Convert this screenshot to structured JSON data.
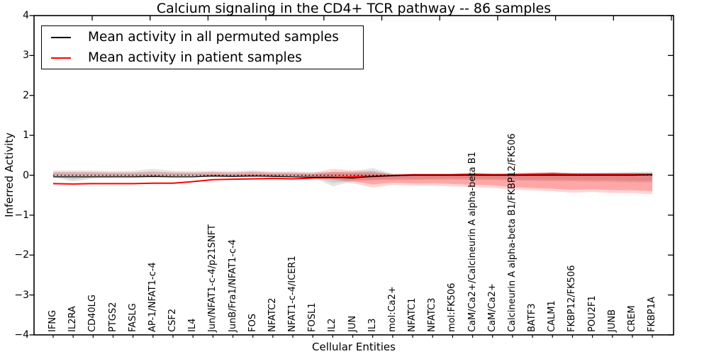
{
  "title": "Calcium signaling in the CD4+ TCR pathway -- 86 samples",
  "axes": {
    "ylabel": "Inferred Activity",
    "xlabel": "Cellular Entities"
  },
  "legend": [
    {
      "label": "Mean activity in all permuted samples",
      "color": "#000000"
    },
    {
      "label": "Mean activity in patient samples",
      "color": "#ff0000"
    }
  ],
  "chart_data": {
    "type": "line",
    "title": "Calcium signaling in the CD4+ TCR pathway -- 86 samples",
    "xlabel": "Cellular Entities",
    "ylabel": "Inferred Activity",
    "ylim": [
      -4,
      4
    ],
    "yticks": [
      4,
      3,
      2,
      1,
      0,
      -1,
      -2,
      -3,
      -4
    ],
    "grid": false,
    "legend_position": "upper left",
    "zero_line": true,
    "categories": [
      "IFNG",
      "IL2RA",
      "CD40LG",
      "PTGS2",
      "FASLG",
      "AP-1/NFAT1-c-4",
      "CSF2",
      "IL4",
      "Jun/NFAT1-c-4/p21SNFT",
      "JunB/Fra1/NFAT1-c-4",
      "FOS",
      "NFATC2",
      "NFAT1-c-4/ICER1",
      "FOSL1",
      "IL2",
      "JUN",
      "IL3",
      "mol:Ca2+",
      "NFATC1",
      "NFATC3",
      "mol:FK506",
      "CaM/Ca2+/Calcineurin A alpha-beta B1",
      "CaM/Ca2+",
      "Calcineurin A alpha-beta B1/FKBP12/FK506",
      "BATF3",
      "CALM1",
      "FKBP12/FK506",
      "POU2F1",
      "JUNB",
      "CREM",
      "FKBP1A"
    ],
    "series": [
      {
        "name": "Mean activity in all permuted samples",
        "color": "#000000",
        "band_color": "#999999",
        "mean": [
          -0.04,
          -0.04,
          -0.04,
          -0.04,
          -0.04,
          -0.03,
          -0.04,
          -0.04,
          -0.02,
          -0.03,
          -0.02,
          -0.03,
          -0.04,
          -0.05,
          -0.05,
          -0.07,
          -0.03,
          -0.01,
          0,
          0,
          0,
          0,
          0,
          0,
          0,
          0,
          0,
          0,
          0,
          0,
          0.01
        ],
        "band_hi": [
          0.12,
          0.12,
          0.12,
          0.1,
          0.11,
          0.16,
          0.11,
          0.1,
          0.11,
          0.1,
          0.12,
          0.09,
          0.09,
          0.08,
          0.08,
          0.1,
          0.18,
          0.04,
          0.04,
          0.04,
          0.04,
          0.06,
          0.05,
          0.05,
          0.06,
          0.07,
          0.06,
          0.06,
          0.07,
          0.08,
          0.09
        ],
        "band_lo": [
          -0.18,
          -0.18,
          -0.16,
          -0.16,
          -0.15,
          -0.15,
          -0.14,
          -0.13,
          -0.12,
          -0.12,
          -0.11,
          -0.11,
          -0.12,
          -0.12,
          -0.13,
          -0.15,
          -0.28,
          -0.05,
          -0.04,
          -0.04,
          -0.04,
          -0.05,
          -0.05,
          -0.05,
          -0.06,
          -0.07,
          -0.06,
          -0.06,
          -0.08,
          -0.16,
          -0.05
        ]
      },
      {
        "name": "Mean activity in patient samples",
        "color": "#ff0000",
        "band_color": "#ff0000",
        "mean": [
          -0.21,
          -0.22,
          -0.21,
          -0.21,
          -0.21,
          -0.2,
          -0.2,
          -0.16,
          -0.11,
          -0.1,
          -0.09,
          -0.08,
          -0.09,
          -0.07,
          -0.06,
          -0.04,
          -0.03,
          -0.01,
          0.01,
          0.01,
          0.01,
          0.02,
          0.01,
          0.01,
          0.02,
          0.03,
          0.02,
          0.02,
          0.02,
          0.02,
          0.02
        ],
        "band_hi": [
          0.08,
          0.08,
          0.08,
          0.07,
          0.07,
          0.08,
          0.07,
          0.07,
          0.08,
          0.07,
          0.09,
          0.07,
          0.07,
          0.06,
          0.16,
          0.12,
          0.1,
          0.03,
          0.03,
          0.03,
          0.04,
          0.06,
          0.04,
          0.05,
          0.07,
          0.08,
          0.06,
          0.06,
          0.06,
          0.06,
          0.05
        ],
        "band_lo": [
          -0.48,
          -0.45,
          -0.45,
          -0.42,
          -0.44,
          -0.4,
          -0.38,
          -0.36,
          -0.32,
          -0.3,
          -0.28,
          -0.26,
          -0.26,
          -0.24,
          -0.31,
          -0.2,
          -0.12,
          -0.04,
          -0.02,
          -0.02,
          -0.02,
          -0.01,
          -0.02,
          -0.01,
          0,
          0,
          -0.01,
          0,
          -0.01,
          0,
          -0.01
        ]
      }
    ]
  }
}
